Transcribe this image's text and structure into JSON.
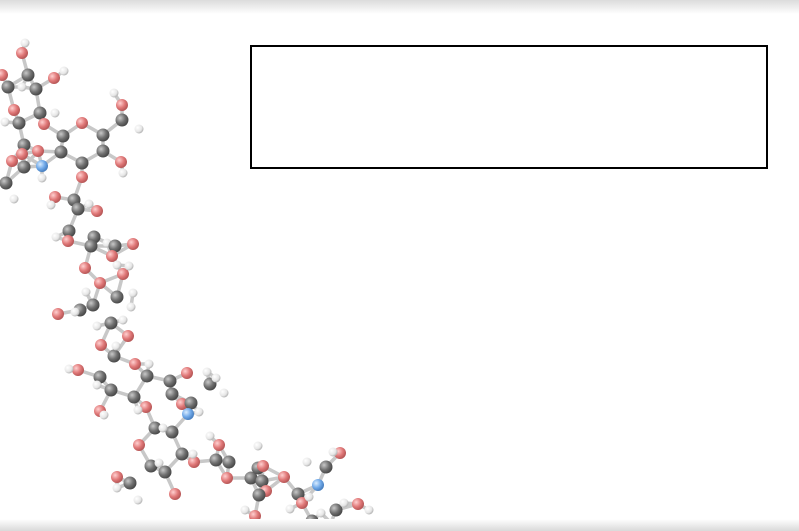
{
  "viewer": {
    "atom_colors": {
      "carbon": "#6e6e6e",
      "oxygen": "#e08080",
      "hydrogen": "#e8e8e8",
      "nitrogen": "#6fa8e8",
      "bond": "#c8c8c8"
    },
    "info_box": {
      "text": ""
    }
  }
}
